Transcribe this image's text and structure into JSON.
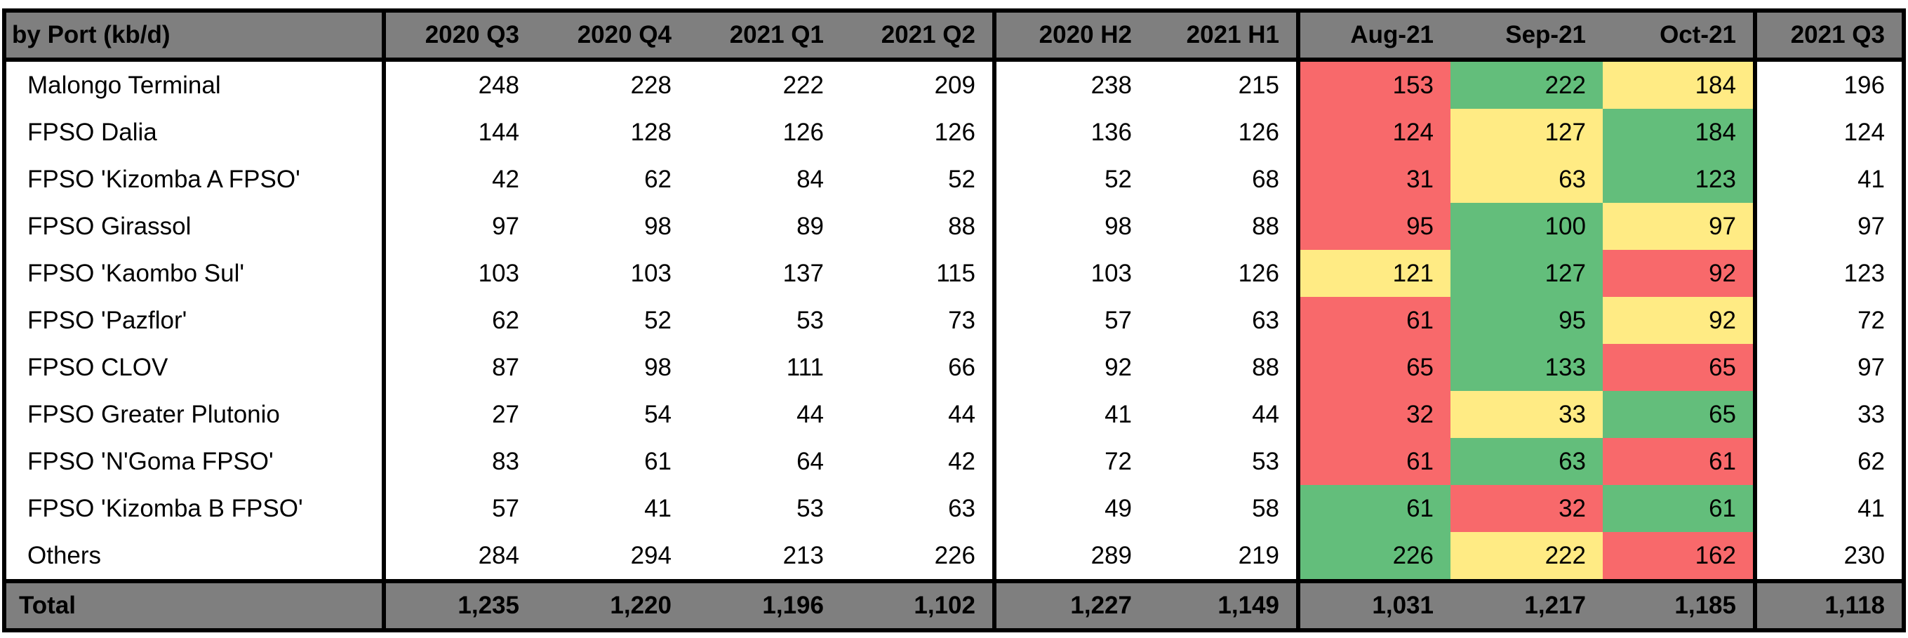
{
  "table": {
    "header": [
      "by Port (kb/d)",
      "2020 Q3",
      "2020 Q4",
      "2021 Q1",
      "2021 Q2",
      "2020 H2",
      "2021 H1",
      "Aug-21",
      "Sep-21",
      "Oct-21",
      "2021 Q3"
    ],
    "rows": [
      [
        "Malongo Terminal",
        "248",
        "228",
        "222",
        "209",
        "238",
        "215",
        "153",
        "222",
        "184",
        "196"
      ],
      [
        "FPSO Dalia",
        "144",
        "128",
        "126",
        "126",
        "136",
        "126",
        "124",
        "127",
        "184",
        "124"
      ],
      [
        "FPSO 'Kizomba A FPSO'",
        "42",
        "62",
        "84",
        "52",
        "52",
        "68",
        "31",
        "63",
        "123",
        "41"
      ],
      [
        "FPSO Girassol",
        "97",
        "98",
        "89",
        "88",
        "98",
        "88",
        "95",
        "100",
        "97",
        "97"
      ],
      [
        "FPSO 'Kaombo Sul'",
        "103",
        "103",
        "137",
        "115",
        "103",
        "126",
        "121",
        "127",
        "92",
        "123"
      ],
      [
        "FPSO 'Pazflor'",
        "62",
        "52",
        "53",
        "73",
        "57",
        "63",
        "61",
        "95",
        "92",
        "72"
      ],
      [
        "FPSO CLOV",
        "87",
        "98",
        "111",
        "66",
        "92",
        "88",
        "65",
        "133",
        "65",
        "97"
      ],
      [
        "FPSO Greater Plutonio",
        "27",
        "54",
        "44",
        "44",
        "41",
        "44",
        "32",
        "33",
        "65",
        "33"
      ],
      [
        "FPSO 'N'Goma FPSO'",
        "83",
        "61",
        "64",
        "42",
        "72",
        "53",
        "61",
        "63",
        "61",
        "62"
      ],
      [
        "FPSO 'Kizomba B FPSO'",
        "57",
        "41",
        "53",
        "63",
        "49",
        "58",
        "61",
        "32",
        "61",
        "41"
      ],
      [
        "Others",
        "284",
        "294",
        "213",
        "226",
        "289",
        "219",
        "226",
        "222",
        "162",
        "230"
      ]
    ],
    "total": [
      "Total",
      "1,235",
      "1,220",
      "1,196",
      "1,102",
      "1,227",
      "1,149",
      "1,031",
      "1,217",
      "1,185",
      "1,118"
    ],
    "heat_colors": [
      [
        "#f8696b",
        "#63be7b",
        "#ffeb84"
      ],
      [
        "#f8696b",
        "#ffeb84",
        "#63be7b"
      ],
      [
        "#f8696b",
        "#ffeb84",
        "#63be7b"
      ],
      [
        "#f8696b",
        "#63be7b",
        "#ffeb84"
      ],
      [
        "#ffeb84",
        "#63be7b",
        "#f8696b"
      ],
      [
        "#f8696b",
        "#63be7b",
        "#ffeb84"
      ],
      [
        "#f8696b",
        "#63be7b",
        "#f8696b"
      ],
      [
        "#f8696b",
        "#ffeb84",
        "#63be7b"
      ],
      [
        "#f8696b",
        "#63be7b",
        "#f8696b"
      ],
      [
        "#63be7b",
        "#f8696b",
        "#63be7b"
      ],
      [
        "#63be7b",
        "#ffeb84",
        "#f8696b"
      ]
    ]
  }
}
